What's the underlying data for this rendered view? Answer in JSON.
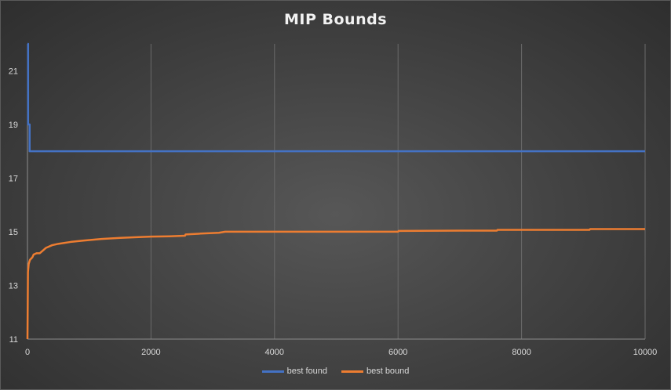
{
  "chart_data": {
    "type": "line",
    "title": "MIP Bounds",
    "xlabel": "",
    "ylabel": "",
    "xlim": [
      0,
      10000
    ],
    "ylim": [
      11,
      22
    ],
    "xticks": [
      0,
      2000,
      4000,
      6000,
      8000,
      10000
    ],
    "yticks": [
      11,
      13,
      15,
      17,
      19,
      21
    ],
    "grid": "vertical",
    "legend": "bottom",
    "background": "#474747",
    "series": [
      {
        "name": "best found",
        "color": "#4472C4",
        "points": [
          [
            0,
            22
          ],
          [
            10,
            22
          ],
          [
            10,
            19
          ],
          [
            35,
            19
          ],
          [
            35,
            18
          ],
          [
            10000,
            18
          ]
        ]
      },
      {
        "name": "best bound",
        "color": "#ED7D31",
        "points": [
          [
            0,
            11
          ],
          [
            8,
            13.5
          ],
          [
            20,
            13.8
          ],
          [
            40,
            13.95
          ],
          [
            80,
            14.05
          ],
          [
            100,
            14.15
          ],
          [
            150,
            14.2
          ],
          [
            200,
            14.2
          ],
          [
            250,
            14.3
          ],
          [
            300,
            14.4
          ],
          [
            400,
            14.5
          ],
          [
            500,
            14.55
          ],
          [
            700,
            14.62
          ],
          [
            900,
            14.67
          ],
          [
            1200,
            14.73
          ],
          [
            1500,
            14.77
          ],
          [
            1800,
            14.8
          ],
          [
            2000,
            14.82
          ],
          [
            2300,
            14.83
          ],
          [
            2550,
            14.85
          ],
          [
            2560,
            14.9
          ],
          [
            2800,
            14.93
          ],
          [
            3100,
            14.96
          ],
          [
            3200,
            15.0
          ],
          [
            4000,
            15.0
          ],
          [
            5000,
            15.0
          ],
          [
            6000,
            15.0
          ],
          [
            6010,
            15.03
          ],
          [
            7000,
            15.04
          ],
          [
            7600,
            15.04
          ],
          [
            7610,
            15.07
          ],
          [
            9100,
            15.07
          ],
          [
            9110,
            15.1
          ],
          [
            10000,
            15.1
          ]
        ]
      }
    ]
  }
}
